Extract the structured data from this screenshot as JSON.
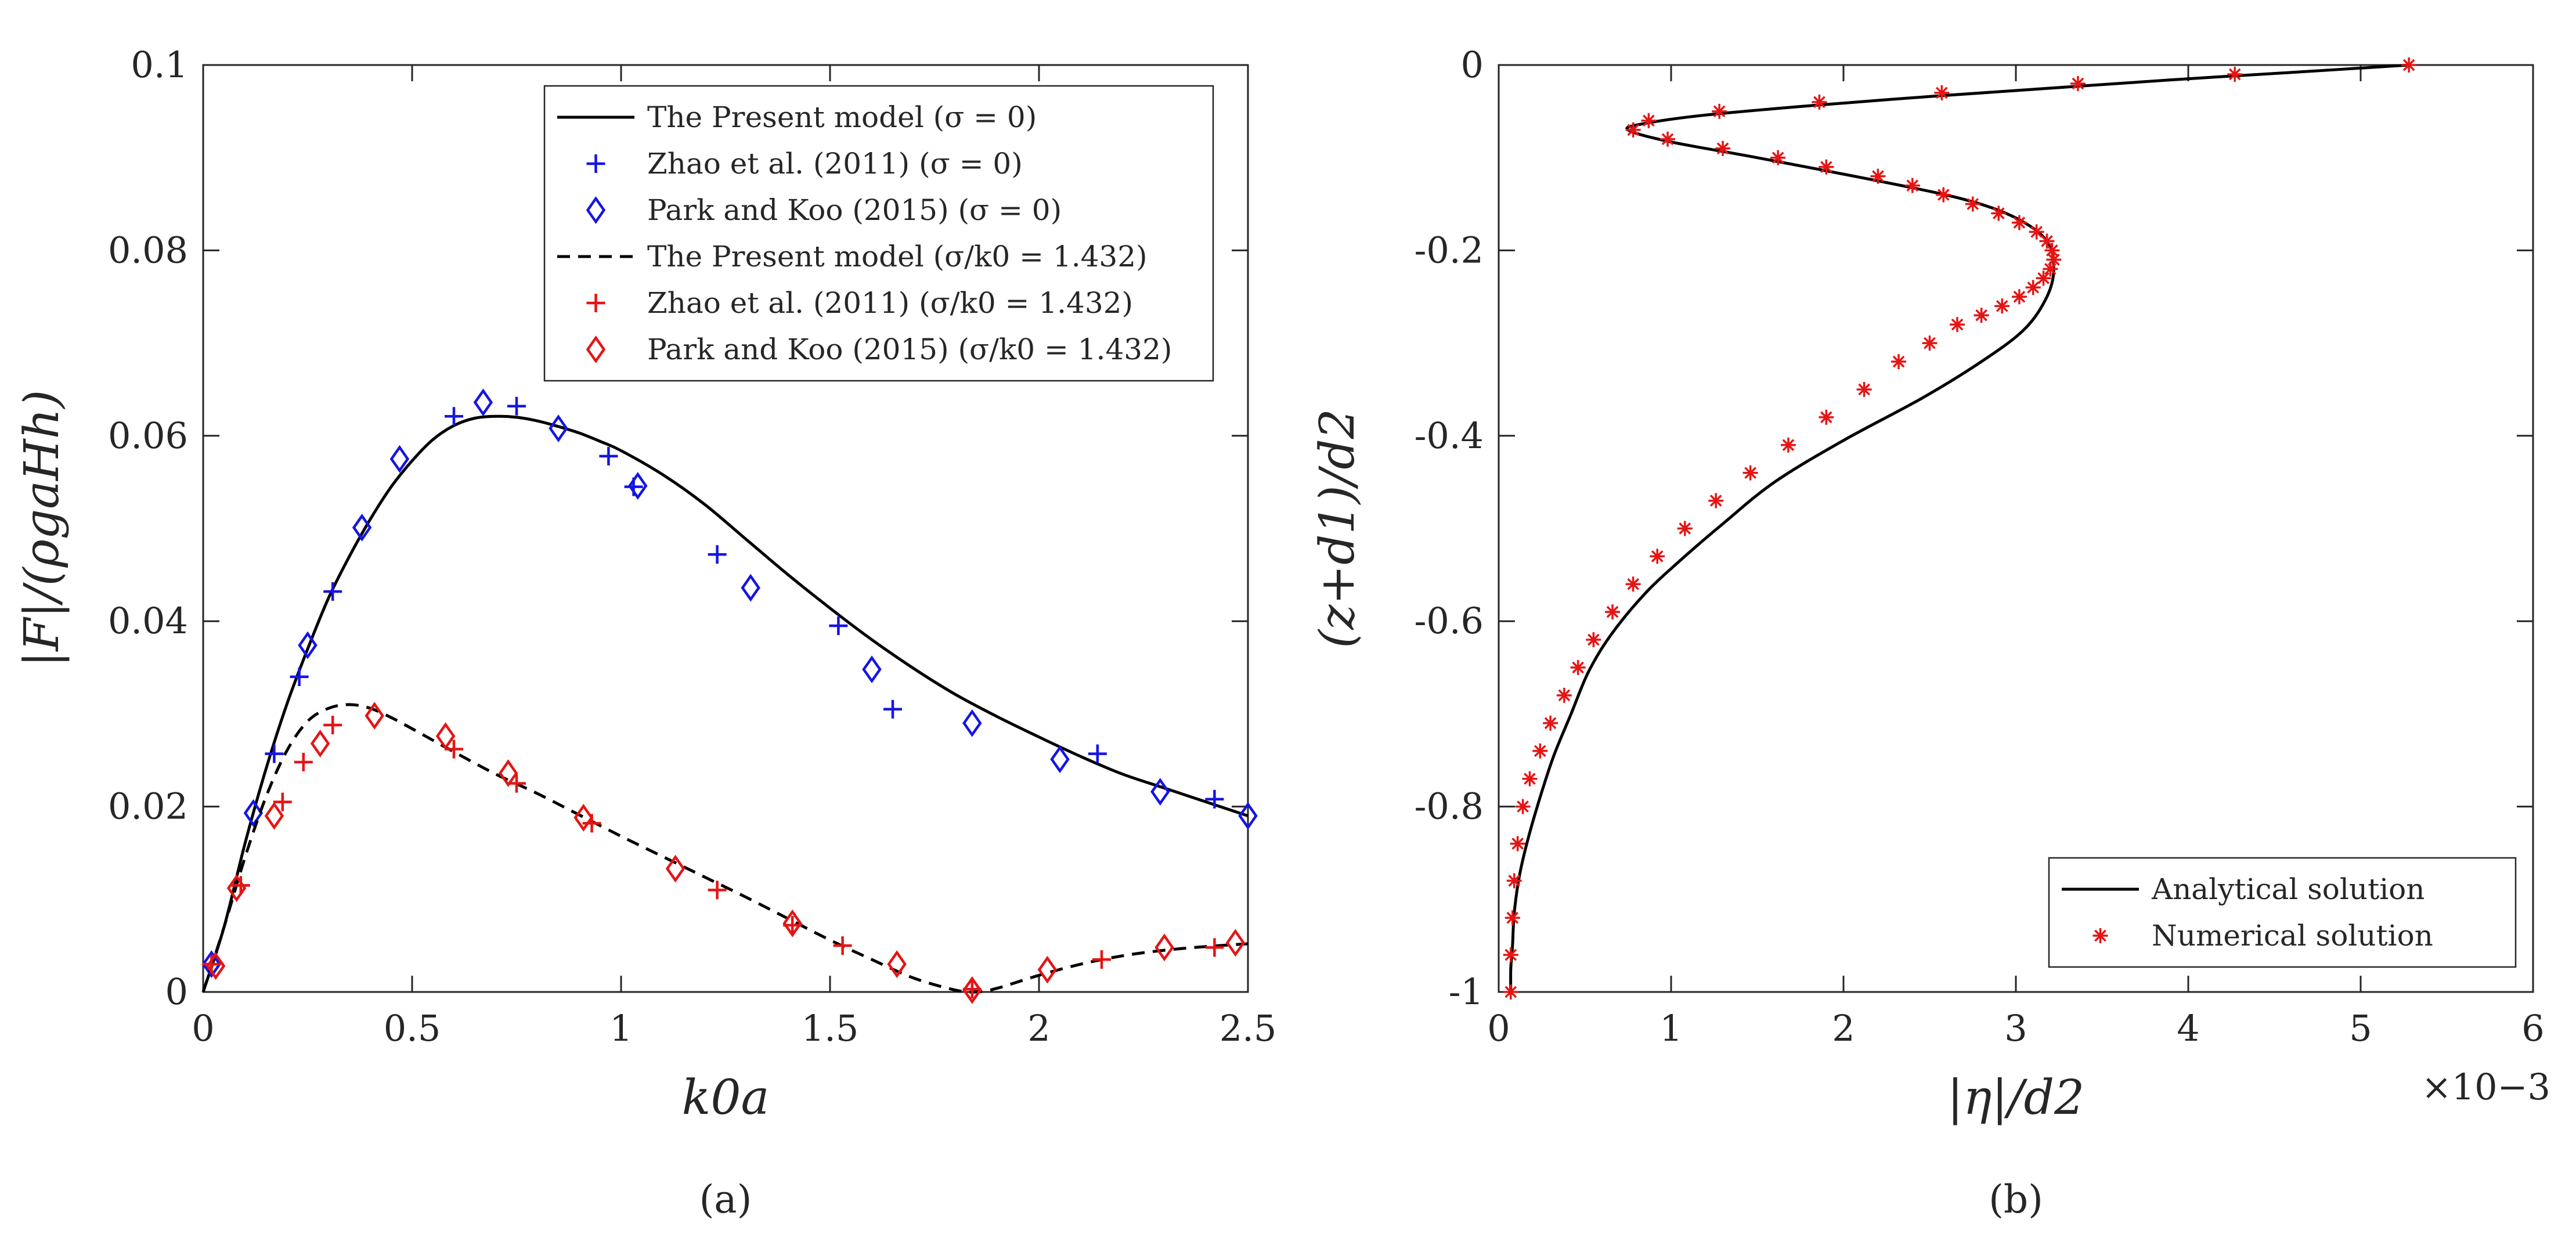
{
  "chart_data": [
    {
      "type": "line",
      "panel_label": "(a)",
      "xlabel": "k0a",
      "ylabel": "|F|/(ρgaHh)",
      "xlim": [
        0,
        2.5
      ],
      "ylim": [
        0,
        0.1
      ],
      "xticks": [
        0,
        0.5,
        1,
        1.5,
        2,
        2.5
      ],
      "xtick_labels": [
        "0",
        "0.5",
        "1",
        "1.5",
        "2",
        "2.5"
      ],
      "yticks": [
        0,
        0.02,
        0.04,
        0.06,
        0.08,
        0.1
      ],
      "ytick_labels": [
        "0",
        "0.02",
        "0.04",
        "0.06",
        "0.08",
        "0.1"
      ],
      "legend_position": "top-right",
      "series": [
        {
          "name": "The Present model (σ = 0)",
          "style": "solid-line",
          "color": "#000000",
          "x": [
            0,
            0.05,
            0.1,
            0.15,
            0.2,
            0.25,
            0.3,
            0.35,
            0.4,
            0.45,
            0.5,
            0.55,
            0.6,
            0.65,
            0.7,
            0.75,
            0.8,
            0.85,
            0.9,
            0.95,
            1.0,
            1.1,
            1.2,
            1.3,
            1.4,
            1.5,
            1.6,
            1.7,
            1.8,
            1.9,
            2.0,
            2.1,
            2.2,
            2.3,
            2.4,
            2.5
          ],
          "y": [
            0,
            0.007,
            0.016,
            0.024,
            0.031,
            0.037,
            0.0425,
            0.047,
            0.051,
            0.0545,
            0.0573,
            0.0596,
            0.0611,
            0.0619,
            0.0621,
            0.062,
            0.0616,
            0.061,
            0.0603,
            0.0594,
            0.0584,
            0.0558,
            0.0526,
            0.0488,
            0.045,
            0.0414,
            0.038,
            0.0349,
            0.0321,
            0.0297,
            0.0275,
            0.0254,
            0.0235,
            0.022,
            0.0205,
            0.019
          ]
        },
        {
          "name": "Zhao et al. (2011) (σ = 0)",
          "style": "plus",
          "color": "#1414e6",
          "x": [
            0.17,
            0.23,
            0.31,
            0.6,
            0.75,
            0.97,
            1.03,
            1.23,
            1.52,
            1.65,
            2.14,
            2.42
          ],
          "y": [
            0.0257,
            0.034,
            0.0432,
            0.0621,
            0.0632,
            0.0578,
            0.0545,
            0.0472,
            0.0395,
            0.0305,
            0.0257,
            0.0208
          ]
        },
        {
          "name": "Park and Koo (2015) (σ = 0)",
          "style": "diamond",
          "color": "#1414e6",
          "x": [
            0.02,
            0.12,
            0.25,
            0.38,
            0.47,
            0.67,
            0.85,
            1.04,
            1.31,
            1.6,
            1.84,
            2.05,
            2.29,
            2.5
          ],
          "y": [
            0.003,
            0.0193,
            0.0374,
            0.0501,
            0.0575,
            0.0636,
            0.0608,
            0.0546,
            0.0436,
            0.0348,
            0.029,
            0.0251,
            0.0216,
            0.019
          ]
        },
        {
          "name": "The Present model (σ/k0 = 1.432)",
          "style": "dashed-line",
          "color": "#000000",
          "x": [
            0,
            0.05,
            0.1,
            0.15,
            0.2,
            0.25,
            0.3,
            0.35,
            0.4,
            0.45,
            0.5,
            0.6,
            0.7,
            0.8,
            0.9,
            1.0,
            1.1,
            1.2,
            1.3,
            1.4,
            1.5,
            1.6,
            1.7,
            1.8,
            1.85,
            1.9,
            2.0,
            2.1,
            2.2,
            2.3,
            2.4,
            2.5
          ],
          "y": [
            0,
            0.007,
            0.0145,
            0.021,
            0.026,
            0.0292,
            0.0306,
            0.031,
            0.0306,
            0.0296,
            0.0284,
            0.0259,
            0.0235,
            0.0214,
            0.0191,
            0.0168,
            0.0146,
            0.0124,
            0.0102,
            0.0079,
            0.0056,
            0.0035,
            0.0015,
            0.0002,
            0.0,
            0.0004,
            0.0018,
            0.003,
            0.0039,
            0.0045,
            0.0049,
            0.0052
          ]
        },
        {
          "name": "Zhao et al. (2011) (σ/k0 = 1.432)",
          "style": "plus",
          "color": "#e61414",
          "x": [
            0.02,
            0.09,
            0.19,
            0.24,
            0.31,
            0.6,
            0.75,
            0.93,
            1.23,
            1.41,
            1.53,
            1.84,
            2.15,
            2.42
          ],
          "y": [
            0.003,
            0.0115,
            0.0205,
            0.0248,
            0.0288,
            0.0262,
            0.0225,
            0.0182,
            0.011,
            0.0072,
            0.005,
            0.0003,
            0.0035,
            0.0048
          ]
        },
        {
          "name": "Park and Koo (2015) (σ/k0 = 1.432)",
          "style": "diamond",
          "color": "#e61414",
          "x": [
            0.03,
            0.08,
            0.17,
            0.28,
            0.41,
            0.58,
            0.73,
            0.91,
            1.13,
            1.41,
            1.66,
            1.84,
            2.02,
            2.3,
            2.47
          ],
          "y": [
            0.0028,
            0.0112,
            0.019,
            0.0268,
            0.0298,
            0.0276,
            0.0236,
            0.0188,
            0.0133,
            0.0074,
            0.003,
            0.0002,
            0.0024,
            0.0048,
            0.0053
          ]
        }
      ]
    },
    {
      "type": "line",
      "panel_label": "(b)",
      "xlabel": "|η|/d2",
      "ylabel": "(z+d1)/d2",
      "x_exponent": "×10−3",
      "xlim": [
        0,
        6
      ],
      "ylim": [
        -1,
        0
      ],
      "xticks": [
        0,
        1,
        2,
        3,
        4,
        5,
        6
      ],
      "xtick_labels": [
        "0",
        "1",
        "2",
        "3",
        "4",
        "5",
        "6"
      ],
      "yticks": [
        0,
        -0.2,
        -0.4,
        -0.6,
        -0.8,
        -1
      ],
      "ytick_labels": [
        "0",
        "-0.2",
        "-0.4",
        "-0.6",
        "-0.8",
        "-1"
      ],
      "legend_position": "bottom-right",
      "series": [
        {
          "name": "Analytical solution",
          "style": "solid-line",
          "color": "#000000",
          "x": [
            5.28,
            4.6,
            3.9,
            3.2,
            2.5,
            1.8,
            1.2,
            0.85,
            0.75,
            1.0,
            1.5,
            2.2,
            2.7,
            3.0,
            3.18,
            3.22,
            3.18,
            3.05,
            2.8,
            2.45,
            2.0,
            1.6,
            1.3,
            1.05,
            0.85,
            0.65,
            0.52,
            0.42,
            0.32,
            0.24,
            0.17,
            0.12,
            0.09,
            0.08,
            0.07,
            0.07
          ],
          "y": [
            0,
            -0.008,
            -0.016,
            -0.025,
            -0.034,
            -0.044,
            -0.054,
            -0.063,
            -0.07,
            -0.083,
            -0.1,
            -0.125,
            -0.145,
            -0.165,
            -0.19,
            -0.22,
            -0.25,
            -0.285,
            -0.32,
            -0.36,
            -0.405,
            -0.45,
            -0.495,
            -0.535,
            -0.57,
            -0.615,
            -0.655,
            -0.7,
            -0.745,
            -0.79,
            -0.835,
            -0.875,
            -0.915,
            -0.95,
            -0.975,
            -1.0
          ]
        },
        {
          "name": "Numerical solution",
          "style": "asterisk",
          "color": "#e61414",
          "x": [
            5.28,
            4.27,
            3.36,
            2.57,
            1.86,
            1.28,
            0.87,
            0.78,
            0.98,
            1.3,
            1.62,
            1.9,
            2.2,
            2.4,
            2.58,
            2.75,
            2.9,
            3.02,
            3.12,
            3.18,
            3.21,
            3.22,
            3.2,
            3.16,
            3.1,
            3.02,
            2.92,
            2.8,
            2.66,
            2.5,
            2.32,
            2.12,
            1.9,
            1.68,
            1.46,
            1.26,
            1.08,
            0.92,
            0.78,
            0.66,
            0.55,
            0.46,
            0.38,
            0.3,
            0.24,
            0.18,
            0.14,
            0.11,
            0.09,
            0.08,
            0.07,
            0.07
          ],
          "y": [
            0,
            -0.01,
            -0.02,
            -0.03,
            -0.04,
            -0.05,
            -0.06,
            -0.07,
            -0.08,
            -0.09,
            -0.1,
            -0.11,
            -0.12,
            -0.13,
            -0.14,
            -0.15,
            -0.16,
            -0.17,
            -0.18,
            -0.19,
            -0.2,
            -0.21,
            -0.22,
            -0.23,
            -0.24,
            -0.25,
            -0.26,
            -0.27,
            -0.28,
            -0.3,
            -0.32,
            -0.35,
            -0.38,
            -0.41,
            -0.44,
            -0.47,
            -0.5,
            -0.53,
            -0.56,
            -0.59,
            -0.62,
            -0.65,
            -0.68,
            -0.71,
            -0.74,
            -0.77,
            -0.8,
            -0.84,
            -0.88,
            -0.92,
            -0.96,
            -1.0
          ]
        }
      ]
    }
  ]
}
